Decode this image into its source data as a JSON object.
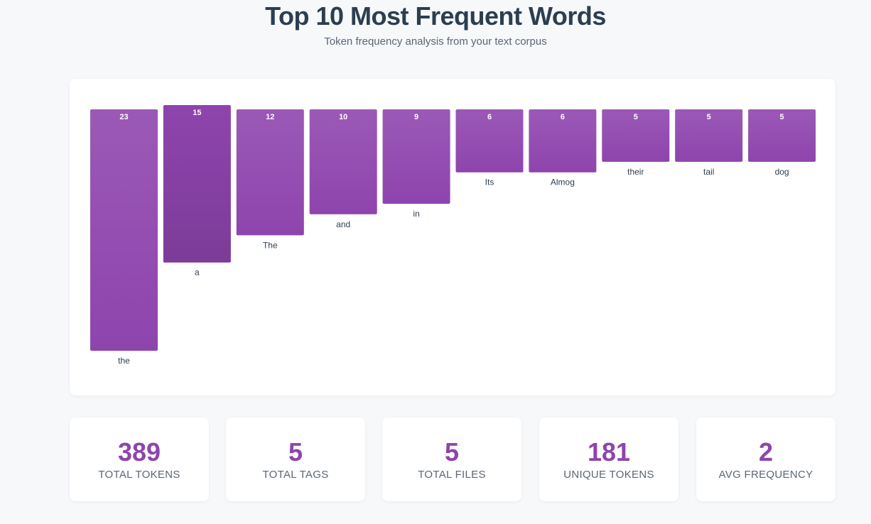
{
  "header": {
    "title": "Top 10 Most Frequent Words",
    "subtitle": "Token frequency analysis from your text corpus"
  },
  "colors": {
    "bar_top": "#9b59b6",
    "bar_bottom": "#8e44ad",
    "bar_highlight_top": "#8e44ad",
    "bar_highlight_bottom": "#7d3c98",
    "accent": "#8e44ad"
  },
  "chart_data": {
    "type": "bar",
    "title": "Top 10 Most Frequent Words",
    "subtitle": "Token frequency analysis from your text corpus",
    "categories": [
      "the",
      "a",
      "The",
      "and",
      "in",
      "Its",
      "Almog",
      "their",
      "tail",
      "dog"
    ],
    "values": [
      23,
      15,
      12,
      10,
      9,
      6,
      6,
      5,
      5,
      5
    ],
    "highlighted_index": 1,
    "xlabel": "",
    "ylabel": "",
    "grid": false
  },
  "stats": [
    {
      "value": "389",
      "label": "TOTAL TOKENS"
    },
    {
      "value": "5",
      "label": "TOTAL TAGS"
    },
    {
      "value": "5",
      "label": "TOTAL FILES"
    },
    {
      "value": "181",
      "label": "UNIQUE TOKENS"
    },
    {
      "value": "2",
      "label": "AVG FREQUENCY"
    }
  ]
}
